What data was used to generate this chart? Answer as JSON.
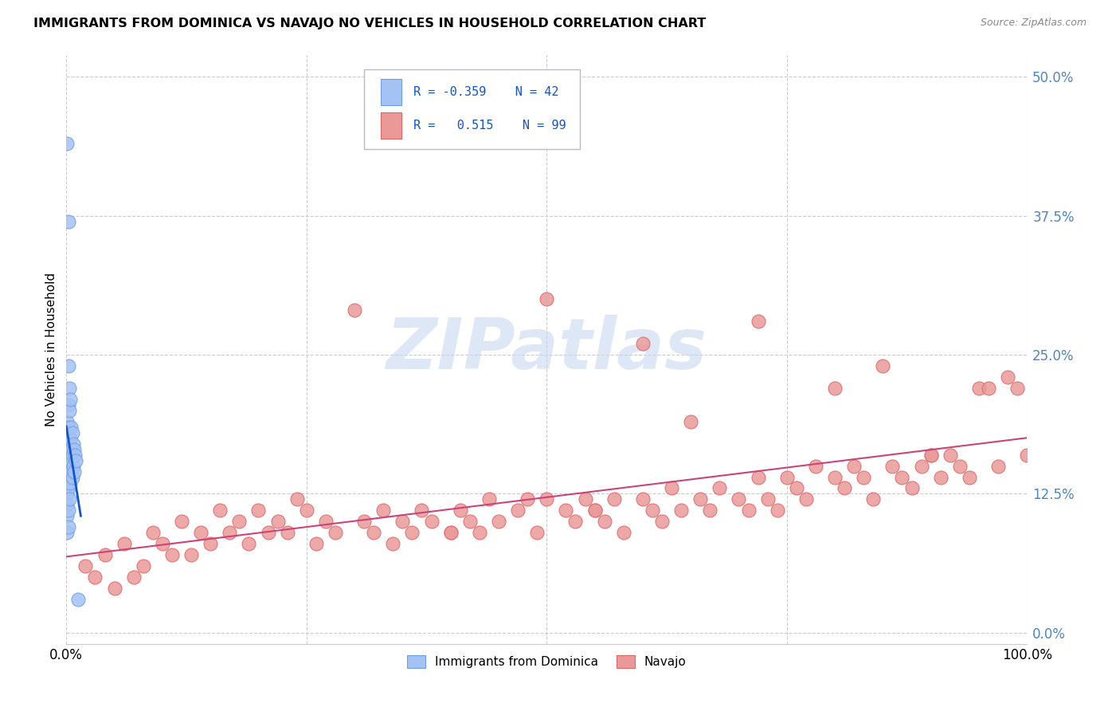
{
  "title": "IMMIGRANTS FROM DOMINICA VS NAVAJO NO VEHICLES IN HOUSEHOLD CORRELATION CHART",
  "source": "Source: ZipAtlas.com",
  "ylabel": "No Vehicles in Household",
  "ytick_values": [
    0.0,
    0.125,
    0.25,
    0.375,
    0.5
  ],
  "xlim": [
    0.0,
    1.0
  ],
  "ylim": [
    -0.01,
    0.52
  ],
  "blue_color": "#a4c2f4",
  "blue_edge_color": "#6d9eeb",
  "pink_color": "#ea9999",
  "pink_edge_color": "#e06666",
  "blue_line_color": "#1155cc",
  "pink_line_color": "#cc4477",
  "watermark_color": "#c8d8f0",
  "legend_label1": "Immigrants from Dominica",
  "legend_label2": "Navajo",
  "legend_text_color": "#1155cc",
  "right_tick_color": "#4a86c8",
  "grid_color": "#cccccc",
  "blue_x": [
    0.001,
    0.001,
    0.001,
    0.001,
    0.001,
    0.001,
    0.001,
    0.001,
    0.001,
    0.001,
    0.002,
    0.002,
    0.002,
    0.002,
    0.002,
    0.002,
    0.002,
    0.002,
    0.002,
    0.003,
    0.003,
    0.003,
    0.003,
    0.003,
    0.003,
    0.004,
    0.004,
    0.004,
    0.004,
    0.005,
    0.005,
    0.005,
    0.006,
    0.006,
    0.006,
    0.007,
    0.007,
    0.008,
    0.008,
    0.009,
    0.01,
    0.012
  ],
  "blue_y": [
    0.44,
    0.19,
    0.17,
    0.155,
    0.145,
    0.135,
    0.125,
    0.115,
    0.105,
    0.09,
    0.37,
    0.24,
    0.205,
    0.185,
    0.165,
    0.15,
    0.13,
    0.11,
    0.095,
    0.22,
    0.2,
    0.175,
    0.16,
    0.14,
    0.12,
    0.21,
    0.175,
    0.155,
    0.135,
    0.185,
    0.165,
    0.145,
    0.18,
    0.16,
    0.14,
    0.17,
    0.15,
    0.165,
    0.145,
    0.16,
    0.155,
    0.03
  ],
  "pink_x": [
    0.02,
    0.03,
    0.04,
    0.05,
    0.06,
    0.07,
    0.08,
    0.09,
    0.1,
    0.11,
    0.12,
    0.13,
    0.14,
    0.15,
    0.16,
    0.17,
    0.18,
    0.19,
    0.2,
    0.21,
    0.22,
    0.23,
    0.24,
    0.25,
    0.26,
    0.27,
    0.28,
    0.3,
    0.31,
    0.32,
    0.33,
    0.34,
    0.35,
    0.36,
    0.37,
    0.38,
    0.4,
    0.41,
    0.42,
    0.43,
    0.44,
    0.45,
    0.47,
    0.48,
    0.49,
    0.5,
    0.52,
    0.53,
    0.54,
    0.55,
    0.56,
    0.57,
    0.58,
    0.6,
    0.61,
    0.62,
    0.63,
    0.64,
    0.65,
    0.66,
    0.67,
    0.68,
    0.7,
    0.71,
    0.72,
    0.73,
    0.74,
    0.75,
    0.76,
    0.77,
    0.78,
    0.8,
    0.81,
    0.82,
    0.83,
    0.84,
    0.85,
    0.86,
    0.87,
    0.88,
    0.89,
    0.9,
    0.91,
    0.92,
    0.93,
    0.94,
    0.95,
    0.96,
    0.97,
    0.98,
    0.99,
    1.0,
    0.5,
    0.72,
    0.4,
    0.6,
    0.8,
    0.9,
    0.55
  ],
  "pink_y": [
    0.06,
    0.05,
    0.07,
    0.04,
    0.08,
    0.05,
    0.06,
    0.09,
    0.08,
    0.07,
    0.1,
    0.07,
    0.09,
    0.08,
    0.11,
    0.09,
    0.1,
    0.08,
    0.11,
    0.09,
    0.1,
    0.09,
    0.12,
    0.11,
    0.08,
    0.1,
    0.09,
    0.29,
    0.1,
    0.09,
    0.11,
    0.08,
    0.1,
    0.09,
    0.11,
    0.1,
    0.09,
    0.11,
    0.1,
    0.09,
    0.12,
    0.1,
    0.11,
    0.12,
    0.09,
    0.12,
    0.11,
    0.1,
    0.12,
    0.11,
    0.1,
    0.12,
    0.09,
    0.12,
    0.11,
    0.1,
    0.13,
    0.11,
    0.19,
    0.12,
    0.11,
    0.13,
    0.12,
    0.11,
    0.14,
    0.12,
    0.11,
    0.14,
    0.13,
    0.12,
    0.15,
    0.14,
    0.13,
    0.15,
    0.14,
    0.12,
    0.24,
    0.15,
    0.14,
    0.13,
    0.15,
    0.16,
    0.14,
    0.16,
    0.15,
    0.14,
    0.22,
    0.22,
    0.15,
    0.23,
    0.22,
    0.16,
    0.3,
    0.28,
    0.09,
    0.26,
    0.22,
    0.16,
    0.11
  ],
  "blue_trend_x": [
    0.0,
    0.015
  ],
  "blue_trend_y": [
    0.195,
    0.09
  ],
  "pink_trend_x": [
    0.0,
    1.0
  ],
  "pink_trend_y": [
    0.063,
    0.175
  ]
}
